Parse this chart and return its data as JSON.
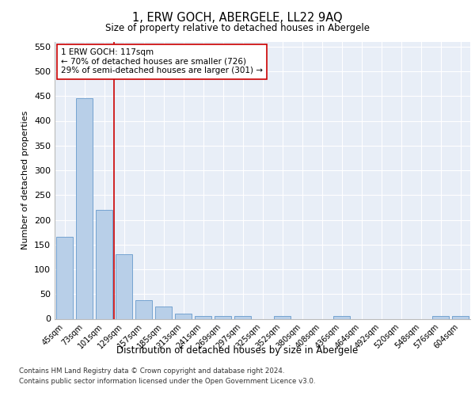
{
  "title": "1, ERW GOCH, ABERGELE, LL22 9AQ",
  "subtitle": "Size of property relative to detached houses in Abergele",
  "xlabel": "Distribution of detached houses by size in Abergele",
  "ylabel": "Number of detached properties",
  "categories": [
    "45sqm",
    "73sqm",
    "101sqm",
    "129sqm",
    "157sqm",
    "185sqm",
    "213sqm",
    "241sqm",
    "269sqm",
    "297sqm",
    "325sqm",
    "352sqm",
    "380sqm",
    "408sqm",
    "436sqm",
    "464sqm",
    "492sqm",
    "520sqm",
    "548sqm",
    "576sqm",
    "604sqm"
  ],
  "values": [
    165,
    445,
    220,
    130,
    37,
    25,
    10,
    6,
    5,
    5,
    0,
    5,
    0,
    0,
    6,
    0,
    0,
    0,
    0,
    5,
    5
  ],
  "bar_color": "#b8cfe8",
  "bar_edge_color": "#6699cc",
  "highlight_x": "101sqm",
  "highlight_line_color": "#cc0000",
  "annotation_text": "1 ERW GOCH: 117sqm\n← 70% of detached houses are smaller (726)\n29% of semi-detached houses are larger (301) →",
  "annotation_box_color": "#ffffff",
  "annotation_box_edge_color": "#cc0000",
  "ylim": [
    0,
    560
  ],
  "yticks": [
    0,
    50,
    100,
    150,
    200,
    250,
    300,
    350,
    400,
    450,
    500,
    550
  ],
  "background_color": "#e8eef7",
  "footer_line1": "Contains HM Land Registry data © Crown copyright and database right 2024.",
  "footer_line2": "Contains public sector information licensed under the Open Government Licence v3.0."
}
